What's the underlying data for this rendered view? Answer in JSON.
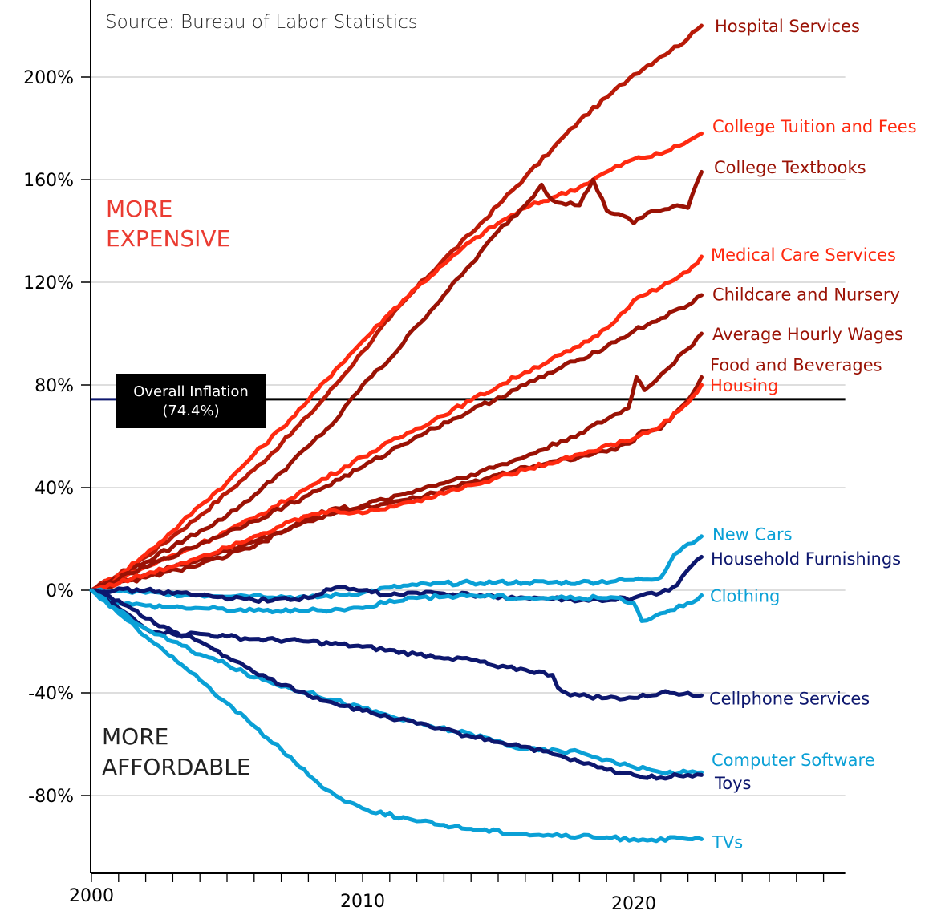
{
  "chart_data": {
    "type": "line",
    "title": "",
    "source": "Source: Bureau of Labor Statistics",
    "xlabel": "",
    "ylabel": "",
    "xlim": [
      2000,
      2027.8
    ],
    "ylim": [
      -110,
      225
    ],
    "x_tick_labels": [
      {
        "value": 2000,
        "label": "2000"
      },
      {
        "value": 2010,
        "label": "2010"
      },
      {
        "value": 2020,
        "label": "2020"
      }
    ],
    "x_minor_ticks_every": 1,
    "y_ticks": [
      {
        "value": 200,
        "label": "200%"
      },
      {
        "value": 160,
        "label": "160%"
      },
      {
        "value": 120,
        "label": "120%"
      },
      {
        "value": 80,
        "label": "80%"
      },
      {
        "value": 40,
        "label": "40%"
      },
      {
        "value": 0,
        "label": "0%"
      },
      {
        "value": -40,
        "label": "-40%"
      },
      {
        "value": -80,
        "label": "-80%"
      }
    ],
    "grid": "horizontal",
    "annotations": {
      "more_expensive": [
        "MORE",
        "EXPENSIVE"
      ],
      "more_affordable": [
        "MORE",
        "AFFORDABLE"
      ],
      "inflation_label": [
        "Overall Inflation",
        "(74.4%)"
      ],
      "inflation_value": 74.4
    },
    "colors": {
      "dark_red": "#9a1205",
      "bright_red": "#ff2a10",
      "mid_red": "#b81a08",
      "navy": "#0d176e",
      "light_blue": "#0aa0d6",
      "more_expensive": "#ea3b31",
      "more_affordable": "#222222"
    },
    "series": [
      {
        "name": "Hospital Services",
        "color_key": "mid_red",
        "label_color_key": "dark_red",
        "x": [
          2000,
          2001,
          2002,
          2003,
          2004,
          2005,
          2006,
          2007,
          2008,
          2009,
          2010,
          2011,
          2012,
          2013,
          2014,
          2015,
          2016,
          2017,
          2018,
          2019,
          2020,
          2021,
          2022,
          2022.5
        ],
        "values": [
          0,
          6,
          13,
          21,
          29,
          38,
          47,
          57,
          68,
          80,
          93,
          106,
          118,
          129,
          139,
          150,
          161,
          172,
          183,
          192,
          201,
          208,
          215,
          220
        ]
      },
      {
        "name": "College Tuition and Fees",
        "color_key": "bright_red",
        "label_color_key": "bright_red",
        "x": [
          2000,
          2001,
          2002,
          2003,
          2004,
          2005,
          2006,
          2007,
          2008,
          2009,
          2010,
          2011,
          2012,
          2013,
          2014,
          2015,
          2016,
          2017,
          2018,
          2019,
          2020,
          2021,
          2022,
          2022.5
        ],
        "values": [
          0,
          6,
          14,
          23,
          33,
          42,
          53,
          63,
          74,
          86,
          97,
          108,
          118,
          127,
          136,
          143,
          149,
          153,
          157,
          163,
          168,
          170,
          175,
          178
        ]
      },
      {
        "name": "College Textbooks",
        "color_key": "dark_red",
        "label_color_key": "dark_red",
        "x": [
          2000,
          2001,
          2002,
          2003,
          2004,
          2005,
          2006,
          2007,
          2008,
          2009,
          2010,
          2011,
          2012,
          2013,
          2014,
          2015,
          2016,
          2016.6,
          2017,
          2018,
          2018.5,
          2019,
          2019.6,
          2020,
          2020.5,
          2021,
          2021.6,
          2022,
          2022.3,
          2022.5
        ],
        "values": [
          0,
          5,
          11,
          17,
          23,
          29,
          37,
          46,
          56,
          66,
          80,
          90,
          103,
          115,
          127,
          140,
          150,
          158,
          152,
          150,
          160,
          148,
          146,
          143,
          147,
          148,
          150,
          149,
          158,
          163
        ]
      },
      {
        "name": "Medical Care Services",
        "color_key": "bright_red",
        "label_color_key": "bright_red",
        "x": [
          2000,
          2002,
          2004,
          2006,
          2008,
          2010,
          2012,
          2014,
          2016,
          2018,
          2019,
          2020,
          2021,
          2022,
          2022.5
        ],
        "values": [
          0,
          9,
          18,
          28,
          40,
          52,
          63,
          74,
          85,
          95,
          102,
          113,
          118,
          124,
          130
        ]
      },
      {
        "name": "Childcare and Nursery",
        "color_key": "dark_red",
        "label_color_key": "dark_red",
        "x": [
          2000,
          2002,
          2004,
          2006,
          2008,
          2010,
          2012,
          2014,
          2016,
          2018,
          2019,
          2020,
          2021,
          2022,
          2022.5
        ],
        "values": [
          0,
          9,
          18,
          27,
          37,
          48,
          60,
          70,
          80,
          90,
          95,
          101,
          106,
          111,
          115
        ]
      },
      {
        "name": "Average Hourly Wages",
        "color_key": "dark_red",
        "label_color_key": "dark_red",
        "x": [
          2000,
          2002,
          2004,
          2006,
          2008,
          2010,
          2012,
          2014,
          2016,
          2018,
          2019.8,
          2020.1,
          2020.4,
          2021,
          2022,
          2022.5
        ],
        "values": [
          0,
          6,
          12,
          19,
          27,
          33,
          39,
          45,
          52,
          61,
          71,
          83,
          78,
          84,
          94,
          100
        ]
      },
      {
        "name": "Food and Beverages",
        "color_key": "dark_red",
        "label_color_key": "dark_red",
        "x": [
          2000,
          2002,
          2004,
          2006,
          2008,
          2009,
          2010,
          2012,
          2014,
          2016,
          2018,
          2019,
          2020,
          2020.3,
          2021,
          2022,
          2022.5
        ],
        "values": [
          0,
          5,
          10,
          17,
          28,
          32,
          32,
          36,
          42,
          48,
          52,
          54,
          58,
          62,
          63,
          74,
          83
        ]
      },
      {
        "name": "Housing",
        "color_key": "bright_red",
        "label_color_key": "bright_red",
        "x": [
          2000,
          2002,
          2004,
          2006,
          2008,
          2009,
          2010,
          2012,
          2014,
          2016,
          2018,
          2020,
          2021,
          2022,
          2022.5
        ],
        "values": [
          0,
          6,
          13,
          21,
          29,
          31,
          30,
          35,
          41,
          47,
          53,
          59,
          64,
          73,
          80
        ]
      },
      {
        "name": "New Cars",
        "color_key": "light_blue",
        "label_color_key": "light_blue",
        "x": [
          2000,
          2002,
          2004,
          2006,
          2008,
          2010,
          2011,
          2012,
          2014,
          2016,
          2018,
          2020,
          2021,
          2021.5,
          2022,
          2022.5
        ],
        "values": [
          0,
          -1,
          -2,
          -2,
          -3,
          -1,
          1,
          2,
          3,
          3,
          3,
          4,
          5,
          14,
          18,
          21
        ]
      },
      {
        "name": "Household Furnishings",
        "color_key": "navy",
        "label_color_key": "navy",
        "x": [
          2000,
          2002,
          2004,
          2006,
          2008,
          2009,
          2010,
          2011,
          2012,
          2014,
          2016,
          2018,
          2019,
          2020,
          2021,
          2021.6,
          2022,
          2022.5
        ],
        "values": [
          0,
          0,
          -2,
          -4,
          -3,
          1,
          0,
          -2,
          -1,
          -2,
          -3,
          -4,
          -4,
          -3,
          -1,
          2,
          8,
          13
        ]
      },
      {
        "name": "Clothing",
        "color_key": "light_blue",
        "label_color_key": "light_blue",
        "x": [
          2000,
          2001,
          2002,
          2004,
          2006,
          2008,
          2010,
          2011,
          2012,
          2014,
          2016,
          2018,
          2019.5,
          2020,
          2020.3,
          2021,
          2022,
          2022.5
        ],
        "values": [
          0,
          -5,
          -6,
          -7,
          -8,
          -8,
          -7,
          -4,
          -3,
          -2,
          -3,
          -3,
          -3,
          -5,
          -12,
          -9,
          -5,
          -2
        ]
      },
      {
        "name": "Cellphone Services",
        "color_key": "navy",
        "label_color_key": "navy",
        "x": [
          2000,
          2001,
          2002,
          2003,
          2004,
          2005,
          2006,
          2008,
          2010,
          2012,
          2014,
          2015,
          2016,
          2017,
          2017.2,
          2017.5,
          2018,
          2019,
          2020,
          2021,
          2022,
          2022.5
        ],
        "values": [
          0,
          -7,
          -15,
          -17,
          -17,
          -18,
          -19,
          -20,
          -22,
          -25,
          -27,
          -30,
          -31,
          -33,
          -38,
          -40,
          -41,
          -42,
          -42,
          -40,
          -40,
          -41
        ]
      },
      {
        "name": "Computer Software",
        "color_key": "light_blue",
        "label_color_key": "light_blue",
        "x": [
          2000,
          2001,
          2002,
          2003,
          2004,
          2005,
          2006,
          2008,
          2010,
          2012,
          2014,
          2016,
          2018,
          2019,
          2020,
          2021,
          2022,
          2022.5
        ],
        "values": [
          0,
          -8,
          -15,
          -20,
          -25,
          -29,
          -34,
          -40,
          -46,
          -52,
          -56,
          -62,
          -63,
          -66,
          -69,
          -71,
          -71,
          -71
        ]
      },
      {
        "name": "Toys",
        "color_key": "navy",
        "label_color_key": "navy",
        "x": [
          2000,
          2001,
          2002,
          2003,
          2004,
          2005,
          2006,
          2008,
          2010,
          2012,
          2014,
          2016,
          2018,
          2019,
          2020,
          2021,
          2022,
          2022.5
        ],
        "values": [
          0,
          -4,
          -11,
          -16,
          -20,
          -26,
          -32,
          -41,
          -47,
          -52,
          -57,
          -61,
          -67,
          -70,
          -72,
          -73,
          -72,
          -72
        ]
      },
      {
        "name": "TVs",
        "color_key": "light_blue",
        "label_color_key": "light_blue",
        "x": [
          2000,
          2001,
          2002,
          2003,
          2004,
          2005,
          2006,
          2007,
          2008,
          2009,
          2010,
          2012,
          2014,
          2016,
          2018,
          2020,
          2022,
          2022.5
        ],
        "values": [
          0,
          -9,
          -18,
          -26,
          -35,
          -44,
          -53,
          -62,
          -72,
          -80,
          -85,
          -90,
          -93,
          -95,
          -96,
          -97,
          -97,
          -97
        ]
      }
    ],
    "label_positions": {
      "Hospital Services": 220,
      "College Tuition and Fees": 181,
      "College Textbooks": 165,
      "Medical Care Services": 131,
      "Childcare and Nursery": 115.5,
      "Average Hourly Wages": 100,
      "Food and Beverages": 88,
      "Housing": 80,
      "New Cars": 22,
      "Household Furnishings": 12.5,
      "Clothing": -2,
      "Cellphone Services": -42,
      "Computer Software": -66,
      "Toys": -75,
      "TVs": -98
    }
  }
}
